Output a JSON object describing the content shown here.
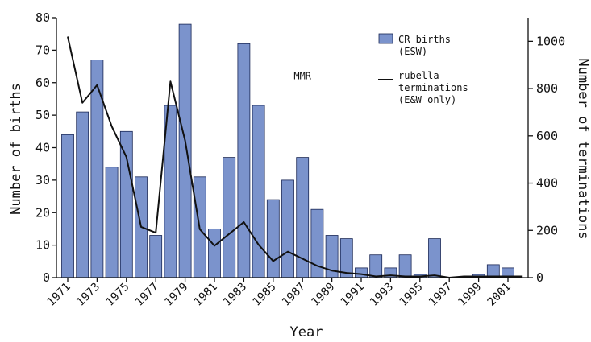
{
  "chart_data": {
    "type": "bar",
    "x": [
      1971,
      1972,
      1973,
      1974,
      1975,
      1976,
      1977,
      1978,
      1979,
      1980,
      1981,
      1982,
      1983,
      1984,
      1985,
      1986,
      1987,
      1988,
      1989,
      1990,
      1991,
      1992,
      1993,
      1994,
      1995,
      1996,
      1997,
      1998,
      1999,
      2000,
      2001,
      2002
    ],
    "x_tick_labels": [
      "1971",
      "1973",
      "1975",
      "1977",
      "1979",
      "1981",
      "1983",
      "1985",
      "1987",
      "1989",
      "1991",
      "1993",
      "1995",
      "1997",
      "1999",
      "2001"
    ],
    "xlabel": "Year",
    "ylabel_left": "Number of births",
    "ylabel_right": "Number of terminations",
    "ylim_left": [
      0,
      80
    ],
    "ylim_right": [
      0,
      1100
    ],
    "left_ticks": [
      0,
      10,
      20,
      30,
      40,
      50,
      60,
      70,
      80
    ],
    "right_ticks": [
      0,
      200,
      400,
      600,
      800,
      1000
    ],
    "series": [
      {
        "name": "CR births (ESW)",
        "kind": "bar",
        "axis": "left",
        "color": "#7b93cc",
        "values": [
          44,
          51,
          67,
          34,
          45,
          31,
          13,
          53,
          78,
          31,
          15,
          37,
          72,
          53,
          24,
          30,
          37,
          21,
          13,
          12,
          3,
          7,
          3,
          7,
          1,
          12,
          0,
          0,
          1,
          4,
          3,
          0
        ]
      },
      {
        "name": "rubella terminations (E&W only)",
        "kind": "line",
        "axis": "right",
        "color": "#111111",
        "values": [
          1020,
          740,
          815,
          640,
          510,
          215,
          190,
          830,
          580,
          205,
          135,
          185,
          235,
          140,
          70,
          110,
          80,
          50,
          30,
          20,
          15,
          5,
          10,
          5,
          5,
          10,
          0,
          5,
          5,
          5,
          5,
          5
        ]
      }
    ],
    "legend": {
      "position": "top-right",
      "entries": [
        {
          "symbol": "bar",
          "lines": [
            "CR births",
            "(ESW)"
          ]
        },
        {
          "symbol": "line",
          "lines": [
            "rubella",
            "terminations",
            "(E&W only)"
          ]
        }
      ]
    },
    "annotations": [
      {
        "text": "MMR",
        "x": 1987,
        "y": 61
      }
    ],
    "grid": false
  }
}
